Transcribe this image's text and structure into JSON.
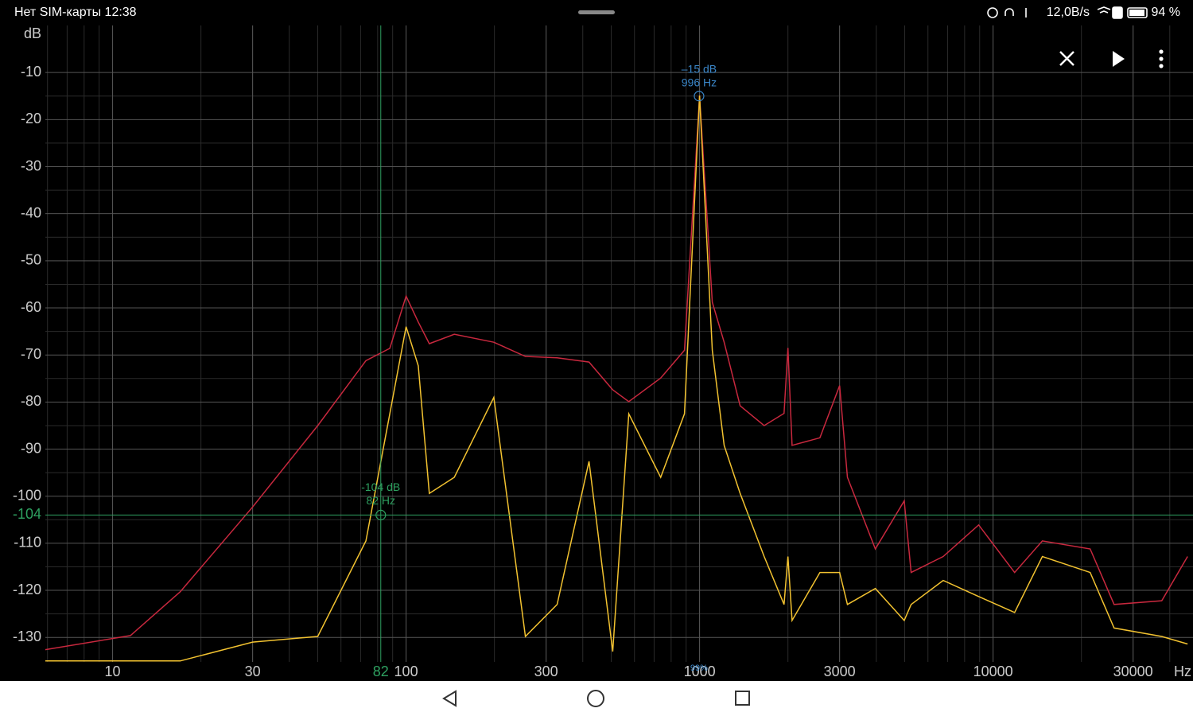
{
  "status_bar": {
    "left": "Нет SIM-карты 12:38",
    "speed": "12,0B/s",
    "battery": "94 %"
  },
  "chart_data": {
    "type": "line",
    "x_log": true,
    "grid": true,
    "minor_grid": true,
    "y_unit": "dB",
    "x_unit": "Hz",
    "x": [
      5.9,
      11.5,
      17,
      30,
      50,
      73,
      88,
      100,
      110,
      120,
      146,
      199,
      255,
      327,
      420,
      506,
      574,
      737,
      888,
      1000,
      1105,
      1213,
      1375,
      1660,
      1940,
      2000,
      2066,
      2570,
      3000,
      3190,
      3970,
      4980,
      5260,
      6760,
      8930,
      11840,
      14720,
      21420,
      25850,
      37550,
      46000
    ],
    "series": [
      {
        "color": "#c8283e",
        "values": [
          -132.6,
          -129.6,
          -120.3,
          -102.3,
          -85,
          -71.2,
          -68.6,
          -57.5,
          -63,
          -67.6,
          -65.6,
          -67.3,
          -70.3,
          -70.6,
          -71.5,
          -77.4,
          -79.9,
          -74.9,
          -69,
          -14.9,
          -58.8,
          -67.3,
          -80.8,
          -85,
          -82.4,
          -68.5,
          -89.2,
          -87.6,
          -76.5,
          -96,
          -111.2,
          -101,
          -116.2,
          -112.8,
          -106.1,
          -116.2,
          -109.5,
          -111.2,
          -123,
          -122.2,
          -112.8
        ]
      },
      {
        "color": "#f2c230",
        "values": [
          -135,
          -135,
          -135,
          -131,
          -129.8,
          -109.5,
          -82.5,
          -64,
          -72.3,
          -99.4,
          -96,
          -79,
          -129.8,
          -123,
          -92.6,
          -133,
          -82.5,
          -96,
          -82.5,
          -14.9,
          -69,
          -89.2,
          -99.4,
          -112.8,
          -123,
          -112.8,
          -126.4,
          -116.2,
          -116.2,
          -123,
          -119.6,
          -126.4,
          -123,
          -117.9,
          -121.3,
          -124.7,
          -112.8,
          -116.2,
          -128,
          -129.8,
          -131.4
        ]
      }
    ],
    "xlim": [
      5.9,
      48000
    ],
    "ylim": [
      -135.2,
      0
    ],
    "xticks": [
      10,
      30,
      100,
      300,
      1000,
      3000,
      10000,
      30000
    ],
    "yticks": [
      -10,
      -20,
      -30,
      -40,
      -50,
      -60,
      -70,
      -80,
      -90,
      -100,
      -110,
      -120,
      -130
    ],
    "peak": {
      "x": 996,
      "y": -15,
      "label_db": "–15 dB",
      "label_hz": "996 Hz",
      "color": "#3a86c8"
    },
    "cursor": {
      "x": 82,
      "y": -104,
      "label_db": "-104 dB",
      "label_hz": "82 Hz",
      "x_label": "82",
      "y_label": "-104",
      "color": "#2ea060"
    },
    "extra_label": "99%"
  }
}
